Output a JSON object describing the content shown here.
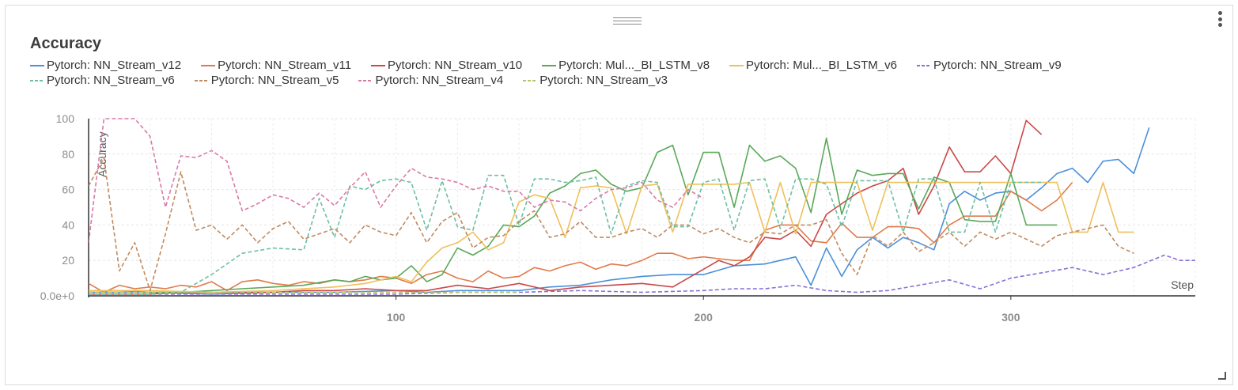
{
  "panel": {
    "title": "Accuracy",
    "drag_handle_icon": "drag-handle-icon",
    "menu_icon": "more-vertical-icon",
    "resize_icon": "resize-corner-icon"
  },
  "chart_data": {
    "type": "line",
    "title": "Accuracy",
    "xlabel": "Step",
    "ylabel": "Accuracy",
    "xlim": [
      0,
      360
    ],
    "ylim": [
      0,
      100
    ],
    "x_ticks": [
      "100",
      "200",
      "300"
    ],
    "y_ticks": [
      "0.0e+0",
      "20",
      "40",
      "60",
      "80",
      "100"
    ],
    "grid": true,
    "legend_position": "top",
    "series": [
      {
        "name": "Pytorch: NN_Stream_v12",
        "color": "#4a90d9",
        "dashed": false,
        "x": [
          0,
          20,
          40,
          60,
          80,
          100,
          110,
          120,
          130,
          140,
          150,
          160,
          170,
          180,
          190,
          200,
          210,
          220,
          230,
          235,
          240,
          245,
          250,
          255,
          260,
          265,
          270,
          275,
          280,
          285,
          290,
          295,
          300,
          305,
          310,
          315,
          320,
          325,
          330,
          335,
          340,
          345,
          350,
          355,
          360
        ],
        "y": [
          2,
          2,
          1,
          2,
          2,
          3,
          2,
          3,
          3,
          3,
          5,
          6,
          9,
          11,
          12,
          12,
          17,
          18,
          22,
          6,
          27,
          11,
          26,
          33,
          27,
          33,
          30,
          26,
          52,
          59,
          54,
          58,
          59,
          54,
          61,
          69,
          72,
          64,
          76,
          77,
          69,
          95,
          null,
          null,
          null
        ]
      },
      {
        "name": "Pytorch: NN_Stream_v11",
        "color": "#e07b4a",
        "dashed": false,
        "x": [
          0,
          5,
          10,
          15,
          20,
          25,
          30,
          35,
          40,
          45,
          50,
          55,
          60,
          65,
          70,
          75,
          80,
          85,
          90,
          95,
          100,
          105,
          110,
          115,
          120,
          125,
          130,
          135,
          140,
          145,
          150,
          155,
          160,
          165,
          170,
          175,
          180,
          185,
          190,
          195,
          200,
          205,
          210,
          215,
          220,
          225,
          230,
          235,
          240,
          245,
          250,
          255,
          260,
          265,
          270,
          275,
          280,
          285,
          290,
          295,
          300,
          305,
          310,
          315,
          320,
          325,
          330,
          335,
          340,
          345,
          350,
          355,
          360
        ],
        "y": [
          7,
          2,
          6,
          4,
          5,
          4,
          6,
          5,
          8,
          3,
          8,
          9,
          7,
          6,
          8,
          7,
          9,
          8,
          9,
          11,
          10,
          7,
          12,
          14,
          10,
          8,
          14,
          10,
          11,
          16,
          14,
          17,
          19,
          15,
          18,
          17,
          20,
          24,
          24,
          21,
          22,
          21,
          20,
          20,
          37,
          40,
          40,
          31,
          30,
          41,
          33,
          33,
          39,
          39,
          38,
          30,
          40,
          45,
          45,
          45,
          59,
          54,
          48,
          54,
          64,
          null,
          null,
          null,
          null,
          null,
          null,
          null,
          null
        ]
      },
      {
        "name": "Pytorch: NN_Stream_v10",
        "color": "#c94848",
        "dashed": false,
        "x": [
          0,
          10,
          20,
          30,
          40,
          50,
          60,
          70,
          80,
          90,
          100,
          110,
          120,
          130,
          140,
          150,
          160,
          170,
          180,
          190,
          200,
          205,
          210,
          215,
          220,
          225,
          230,
          235,
          240,
          245,
          250,
          255,
          260,
          265,
          270,
          275,
          280,
          285,
          290,
          295,
          300,
          305,
          310,
          315,
          320,
          325
        ],
        "y": [
          1,
          1,
          1,
          2,
          2,
          2,
          2,
          3,
          3,
          4,
          3,
          3,
          6,
          4,
          7,
          3,
          5,
          6,
          7,
          5,
          15,
          20,
          17,
          22,
          33,
          32,
          37,
          28,
          46,
          52,
          58,
          62,
          65,
          72,
          46,
          62,
          84,
          70,
          70,
          79,
          69,
          99,
          91,
          null,
          null,
          null
        ]
      },
      {
        "name": "Pytorch: Mul..._BI_LSTM_v8",
        "color": "#5aa85a",
        "dashed": false,
        "x": [
          0,
          10,
          20,
          30,
          40,
          50,
          60,
          70,
          80,
          85,
          90,
          95,
          100,
          105,
          110,
          115,
          120,
          125,
          130,
          135,
          140,
          145,
          150,
          155,
          160,
          165,
          170,
          175,
          180,
          185,
          190,
          195,
          200,
          205,
          210,
          215,
          220,
          225,
          230,
          235,
          240,
          245,
          250,
          255,
          260,
          265,
          270,
          275,
          280,
          285,
          290,
          295,
          300,
          305,
          310,
          315,
          320,
          325,
          330,
          335,
          340
        ],
        "y": [
          3,
          3,
          2,
          2,
          3,
          4,
          5,
          6,
          9,
          8,
          11,
          9,
          10,
          17,
          8,
          12,
          27,
          23,
          28,
          40,
          39,
          45,
          58,
          62,
          69,
          71,
          63,
          59,
          61,
          81,
          85,
          57,
          81,
          81,
          50,
          85,
          76,
          79,
          72,
          47,
          89,
          46,
          71,
          68,
          69,
          69,
          49,
          67,
          64,
          43,
          42,
          42,
          69,
          40,
          40,
          40,
          null,
          null,
          null,
          null,
          null
        ]
      },
      {
        "name": "Pytorch: Mul..._BI_LSTM_v6",
        "color": "#f0c05a",
        "dashed": false,
        "x": [
          0,
          20,
          40,
          60,
          80,
          90,
          100,
          105,
          110,
          115,
          120,
          125,
          130,
          135,
          140,
          145,
          150,
          155,
          160,
          165,
          170,
          175,
          180,
          185,
          190,
          195,
          200,
          205,
          210,
          215,
          220,
          225,
          230,
          235,
          240,
          245,
          250,
          255,
          260,
          265,
          270,
          275,
          280,
          285,
          290,
          295,
          300,
          305,
          310,
          315,
          320,
          325,
          330,
          335,
          340,
          345,
          350
        ],
        "y": [
          3,
          3,
          2,
          3,
          5,
          7,
          11,
          8,
          19,
          27,
          30,
          36,
          26,
          30,
          53,
          57,
          55,
          33,
          61,
          62,
          61,
          35,
          62,
          63,
          36,
          63,
          63,
          63,
          63,
          64,
          36,
          64,
          35,
          64,
          64,
          64,
          64,
          37,
          64,
          64,
          64,
          64,
          64,
          64,
          64,
          64,
          64,
          64,
          64,
          64,
          36,
          36,
          64,
          36,
          36,
          null,
          null
        ]
      },
      {
        "name": "Pytorch: NN_Stream_v9",
        "color": "#8a6fd6",
        "dashed": true,
        "x": [
          0,
          20,
          40,
          60,
          80,
          100,
          120,
          140,
          160,
          180,
          200,
          210,
          220,
          230,
          240,
          250,
          260,
          270,
          280,
          290,
          300,
          310,
          320,
          330,
          340,
          350,
          355,
          360
        ],
        "y": [
          1,
          1,
          1,
          1,
          1,
          1,
          2,
          2,
          3,
          2,
          3,
          4,
          4,
          6,
          3,
          2,
          3,
          6,
          9,
          4,
          10,
          13,
          16,
          12,
          16,
          23,
          20,
          20
        ]
      },
      {
        "name": "Pytorch: NN_Stream_v6",
        "color": "#6bbfa3",
        "dashed": true,
        "x": [
          0,
          20,
          30,
          40,
          50,
          60,
          70,
          75,
          80,
          85,
          90,
          95,
          100,
          105,
          110,
          115,
          120,
          125,
          130,
          135,
          140,
          145,
          150,
          155,
          160,
          165,
          170,
          175,
          180,
          185,
          190,
          195,
          200,
          205,
          210,
          215,
          220,
          225,
          230,
          235,
          240,
          245,
          250,
          255,
          260,
          265,
          270,
          275,
          280,
          285,
          290,
          295,
          300,
          305,
          310,
          315,
          320,
          325,
          330,
          335,
          340,
          345,
          350,
          355,
          360
        ],
        "y": [
          1,
          1,
          2,
          12,
          24,
          27,
          26,
          55,
          33,
          62,
          60,
          65,
          66,
          64,
          37,
          65,
          39,
          37,
          68,
          68,
          40,
          66,
          66,
          64,
          65,
          67,
          35,
          62,
          65,
          64,
          39,
          39,
          64,
          66,
          37,
          65,
          66,
          38,
          66,
          66,
          63,
          39,
          65,
          65,
          65,
          36,
          66,
          66,
          36,
          36,
          64,
          36,
          64,
          64,
          64,
          null,
          null,
          null,
          null,
          null,
          null,
          null,
          null,
          null,
          null
        ]
      },
      {
        "name": "Pytorch: NN_Stream_v5",
        "color": "#c08a60",
        "dashed": true,
        "x": [
          0,
          5,
          10,
          15,
          20,
          25,
          30,
          35,
          40,
          45,
          50,
          55,
          60,
          65,
          70,
          75,
          80,
          85,
          90,
          95,
          100,
          105,
          110,
          115,
          120,
          125,
          130,
          135,
          140,
          145,
          150,
          155,
          160,
          165,
          170,
          175,
          180,
          185,
          190,
          195,
          200,
          205,
          210,
          215,
          220,
          225,
          230,
          235,
          240,
          245,
          250,
          255,
          260,
          265,
          270,
          275,
          280,
          285,
          290,
          295,
          300,
          305,
          310,
          315,
          320,
          325,
          330,
          335,
          340,
          345,
          350,
          355,
          360
        ],
        "y": [
          62,
          78,
          14,
          30,
          3,
          35,
          70,
          37,
          40,
          32,
          40,
          30,
          38,
          42,
          32,
          35,
          38,
          30,
          40,
          36,
          34,
          47,
          30,
          42,
          47,
          27,
          33,
          34,
          42,
          48,
          33,
          35,
          42,
          33,
          33,
          36,
          38,
          33,
          40,
          40,
          35,
          38,
          33,
          30,
          36,
          35,
          40,
          40,
          43,
          24,
          12,
          34,
          28,
          36,
          25,
          30,
          36,
          28,
          36,
          32,
          36,
          32,
          28,
          34,
          36,
          38,
          40,
          28,
          24,
          null,
          null,
          null,
          null
        ]
      },
      {
        "name": "Pytorch: NN_Stream_v4",
        "color": "#d77aa8",
        "dashed": true,
        "x": [
          0,
          5,
          10,
          15,
          20,
          25,
          30,
          35,
          40,
          45,
          50,
          55,
          60,
          65,
          70,
          75,
          80,
          85,
          90,
          95,
          100,
          105,
          110,
          115,
          120,
          125,
          130,
          135,
          140,
          145,
          150,
          155,
          160,
          165,
          170,
          175,
          180,
          185,
          190,
          195,
          200,
          205,
          210,
          215,
          220
        ],
        "y": [
          30,
          100,
          100,
          100,
          90,
          50,
          79,
          78,
          82,
          76,
          48,
          52,
          57,
          55,
          50,
          58,
          51,
          61,
          70,
          50,
          62,
          72,
          67,
          66,
          64,
          60,
          62,
          59,
          59,
          50,
          54,
          53,
          48,
          55,
          60,
          61,
          64,
          54,
          50,
          60,
          55,
          null,
          null,
          null,
          null
        ]
      },
      {
        "name": "Pytorch: NN_Stream_v3",
        "color": "#b8c46a",
        "dashed": true,
        "x": [
          0,
          20,
          40,
          60,
          80,
          100,
          120,
          140
        ],
        "y": [
          2,
          2,
          2,
          2,
          2,
          2,
          2,
          2
        ]
      }
    ]
  }
}
